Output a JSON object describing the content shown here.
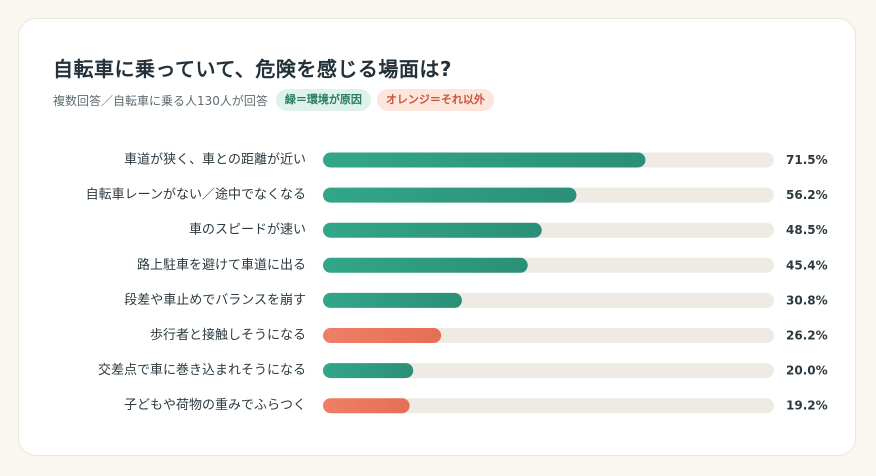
{
  "title": "自転車に乗っていて、危険を感じる場面は?",
  "subtitle": "複数回答／自転車に乗る人130人が回答",
  "legend": {
    "environment_label": "緑＝環境が原因",
    "other_label": "オレンジ＝それ以外"
  },
  "colors": {
    "environment": "#33a68a",
    "environment_dark": "#2a9077",
    "other": "#ee7f66",
    "other_dark": "#e56f55",
    "track": "#efebe4"
  },
  "chart_data": {
    "type": "bar",
    "orientation": "horizontal",
    "value_unit": "%",
    "xlim": [
      0,
      100
    ],
    "grid": false,
    "categories": [
      "車道が狭く、車との距離が近い",
      "自転車レーンがない／途中でなくなる",
      "車のスピードが速い",
      "路上駐車を避けて車道に出る",
      "段差や車止めでバランスを崩す",
      "歩行者と接触しそうになる",
      "交差点で車に巻き込まれそうになる",
      "子どもや荷物の重みでふらつく"
    ],
    "values": [
      71.5,
      56.2,
      48.5,
      45.4,
      30.8,
      26.2,
      20.0,
      19.2
    ],
    "value_labels": [
      "71.5%",
      "56.2%",
      "48.5%",
      "45.4%",
      "30.8%",
      "26.2%",
      "20.0%",
      "19.2%"
    ],
    "cause": [
      "environment",
      "environment",
      "environment",
      "environment",
      "environment",
      "other",
      "environment",
      "other"
    ]
  }
}
